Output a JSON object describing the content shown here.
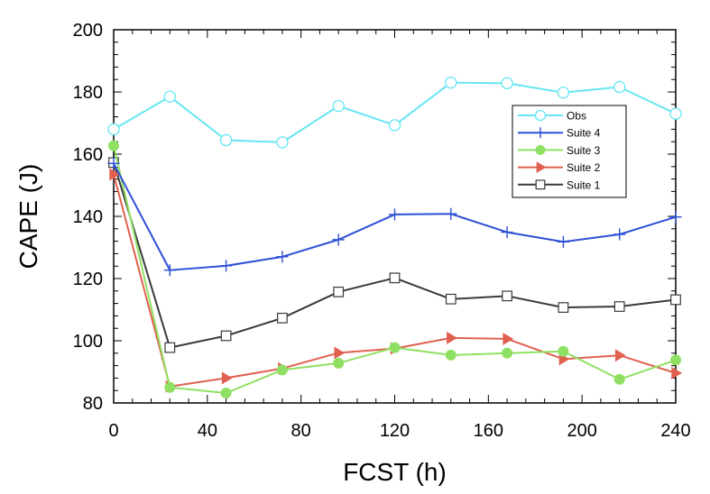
{
  "chart_data": {
    "type": "line",
    "title": "",
    "xlabel": "FCST (h)",
    "ylabel": "CAPE (J)",
    "xlim": [
      0,
      240
    ],
    "ylim": [
      80,
      200
    ],
    "xticks": [
      0,
      40,
      80,
      120,
      160,
      200,
      240
    ],
    "yticks": [
      80,
      100,
      120,
      140,
      160,
      180,
      200
    ],
    "x": [
      0,
      24,
      48,
      72,
      96,
      120,
      144,
      168,
      192,
      216,
      240
    ],
    "legend_position": "top-right",
    "series": [
      {
        "name": "Obs",
        "color": "#66e6f2",
        "marker": "circle-open",
        "values": [
          168,
          178.5,
          164.5,
          163.8,
          175.5,
          169.3,
          183,
          182.8,
          179.8,
          181.6,
          173
        ]
      },
      {
        "name": "Suite 4",
        "color": "#2e4fd6",
        "marker": "plus",
        "values": [
          157,
          122.7,
          124.1,
          127,
          132.5,
          140.6,
          140.8,
          134.9,
          131.8,
          134.2,
          139.8
        ]
      },
      {
        "name": "Suite 3",
        "color": "#8fe062",
        "marker": "circle-filled",
        "values": [
          162.7,
          85,
          83.2,
          90.6,
          92.8,
          97.8,
          95.4,
          96,
          96.6,
          87.6,
          93.8
        ]
      },
      {
        "name": "Suite 2",
        "color": "#e06050",
        "marker": "triangle-right",
        "values": [
          153.5,
          85.3,
          88,
          91.1,
          96.1,
          97.5,
          100.9,
          100.6,
          94.1,
          95.3,
          89.6
        ]
      },
      {
        "name": "Suite 1",
        "color": "#3a3a3a",
        "marker": "square-open",
        "values": [
          157.3,
          97.8,
          101.6,
          107.3,
          115.7,
          120.2,
          113.4,
          114.4,
          110.7,
          111,
          113.2
        ]
      }
    ]
  }
}
